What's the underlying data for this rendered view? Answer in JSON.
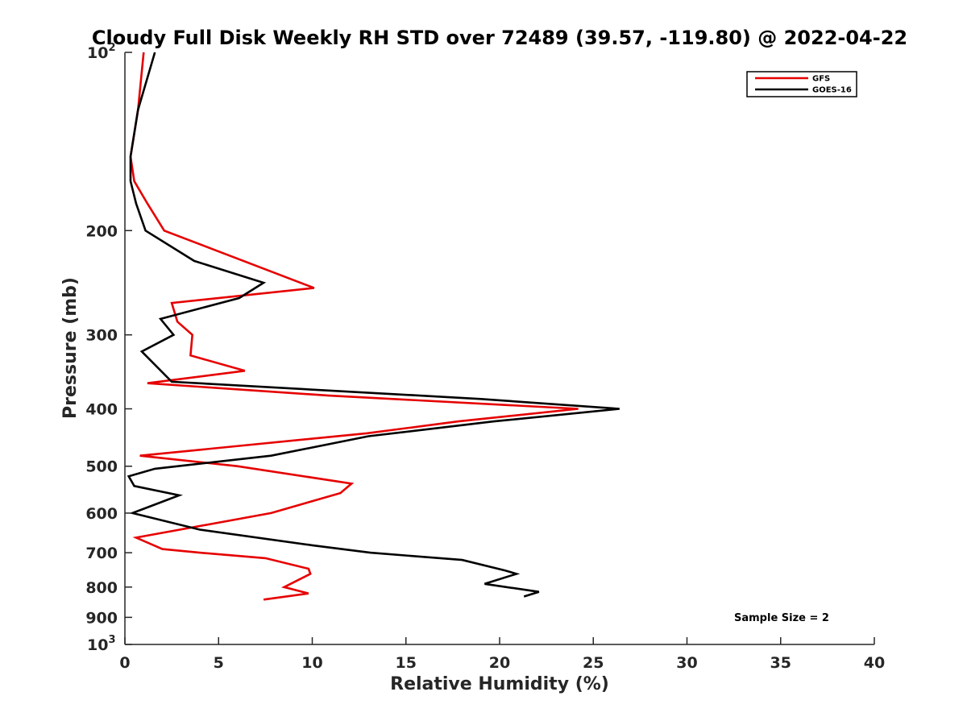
{
  "chart_data": {
    "type": "line",
    "title": "Cloudy Full Disk Weekly RH STD over 72489 (39.57, -119.80) @ 2022-04-22",
    "xlabel": "Relative Humidity (%)",
    "ylabel": "Pressure (mb)",
    "xlim": [
      0,
      40
    ],
    "ylim": [
      100,
      1000
    ],
    "y_scale": "log",
    "y_reversed": true,
    "x_ticks": [
      0,
      5,
      10,
      15,
      20,
      25,
      30,
      35,
      40
    ],
    "y_ticks": [
      {
        "value": 100,
        "base": "10",
        "exp": "2"
      },
      {
        "value": 200,
        "label": "200"
      },
      {
        "value": 300,
        "label": "300"
      },
      {
        "value": 400,
        "label": "400"
      },
      {
        "value": 500,
        "label": "500"
      },
      {
        "value": 600,
        "label": "600"
      },
      {
        "value": 700,
        "label": "700"
      },
      {
        "value": 800,
        "label": "800"
      },
      {
        "value": 900,
        "label": "900"
      },
      {
        "value": 1000,
        "base": "10",
        "exp": "3"
      }
    ],
    "grid": false,
    "legend_position": "top-right",
    "annotation": "Sample Size = 2",
    "series": [
      {
        "name": "GFS",
        "color": "#e60000",
        "points": [
          [
            1.0,
            100
          ],
          [
            0.7,
            125
          ],
          [
            0.3,
            150
          ],
          [
            0.5,
            165
          ],
          [
            1.2,
            180
          ],
          [
            2.1,
            200
          ],
          [
            10.1,
            250
          ],
          [
            2.5,
            265
          ],
          [
            2.8,
            285
          ],
          [
            3.6,
            300
          ],
          [
            3.5,
            325
          ],
          [
            6.4,
            345
          ],
          [
            1.2,
            362
          ],
          [
            10.9,
            380
          ],
          [
            24.2,
            400
          ],
          [
            17.8,
            420
          ],
          [
            12.9,
            440
          ],
          [
            0.8,
            480
          ],
          [
            6.0,
            500
          ],
          [
            12.1,
            535
          ],
          [
            11.5,
            555
          ],
          [
            7.8,
            600
          ],
          [
            0.6,
            660
          ],
          [
            2.0,
            690
          ],
          [
            4.0,
            700
          ],
          [
            7.5,
            715
          ],
          [
            9.8,
            745
          ],
          [
            9.9,
            760
          ],
          [
            8.5,
            800
          ],
          [
            9.8,
            820
          ],
          [
            7.4,
            840
          ]
        ]
      },
      {
        "name": "GOES-16",
        "color": "#000000",
        "points": [
          [
            1.6,
            100
          ],
          [
            0.7,
            125
          ],
          [
            0.3,
            150
          ],
          [
            0.3,
            165
          ],
          [
            0.6,
            180
          ],
          [
            1.1,
            200
          ],
          [
            3.7,
            225
          ],
          [
            7.4,
            245
          ],
          [
            6.1,
            260
          ],
          [
            1.9,
            282
          ],
          [
            2.6,
            300
          ],
          [
            0.9,
            320
          ],
          [
            2.5,
            360
          ],
          [
            19.0,
            385
          ],
          [
            26.4,
            400
          ],
          [
            19.7,
            420
          ],
          [
            13.0,
            445
          ],
          [
            7.8,
            480
          ],
          [
            1.6,
            505
          ],
          [
            0.2,
            520
          ],
          [
            0.5,
            540
          ],
          [
            2.9,
            560
          ],
          [
            1.0,
            590
          ],
          [
            0.4,
            600
          ],
          [
            4.0,
            640
          ],
          [
            10.0,
            680
          ],
          [
            13.1,
            700
          ],
          [
            18.0,
            720
          ],
          [
            20.3,
            750
          ],
          [
            20.9,
            760
          ],
          [
            19.2,
            790
          ],
          [
            22.1,
            815
          ],
          [
            21.3,
            830
          ]
        ]
      }
    ]
  }
}
